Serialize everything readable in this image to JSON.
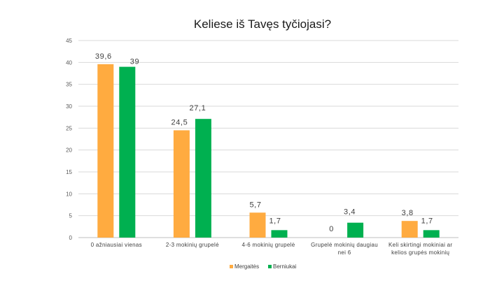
{
  "chart_data": {
    "type": "bar",
    "title": "Keliese iš Tavęs tyčiojasi?",
    "xlabel": "",
    "ylabel": "",
    "ylim": [
      0,
      45
    ],
    "yticks": [
      0,
      5,
      10,
      15,
      20,
      25,
      30,
      35,
      40,
      45
    ],
    "grid": true,
    "legend_position": "bottom",
    "categories": [
      [
        "0 ažniausiai vienas"
      ],
      [
        "2-3 mokinių grupelė"
      ],
      [
        "4-6 mokinių grupelė"
      ],
      [
        "Grupelė mokinių daugiau",
        "nei 6"
      ],
      [
        "Keli skirtingi mokiniai ar",
        "kelios grupės mokinių"
      ]
    ],
    "series": [
      {
        "name": "Mergaitės",
        "color": "#ffab40",
        "values": [
          39.6,
          24.5,
          5.7,
          0,
          3.8
        ],
        "labels": [
          "39,6",
          "24,5",
          "5,7",
          "0",
          "3,8"
        ]
      },
      {
        "name": "Berniukai",
        "color": "#00b050",
        "values": [
          39,
          27.1,
          1.7,
          3.4,
          1.7
        ],
        "labels": [
          "39",
          "27,1",
          "1,7",
          "3,4",
          "1,7"
        ]
      }
    ]
  }
}
